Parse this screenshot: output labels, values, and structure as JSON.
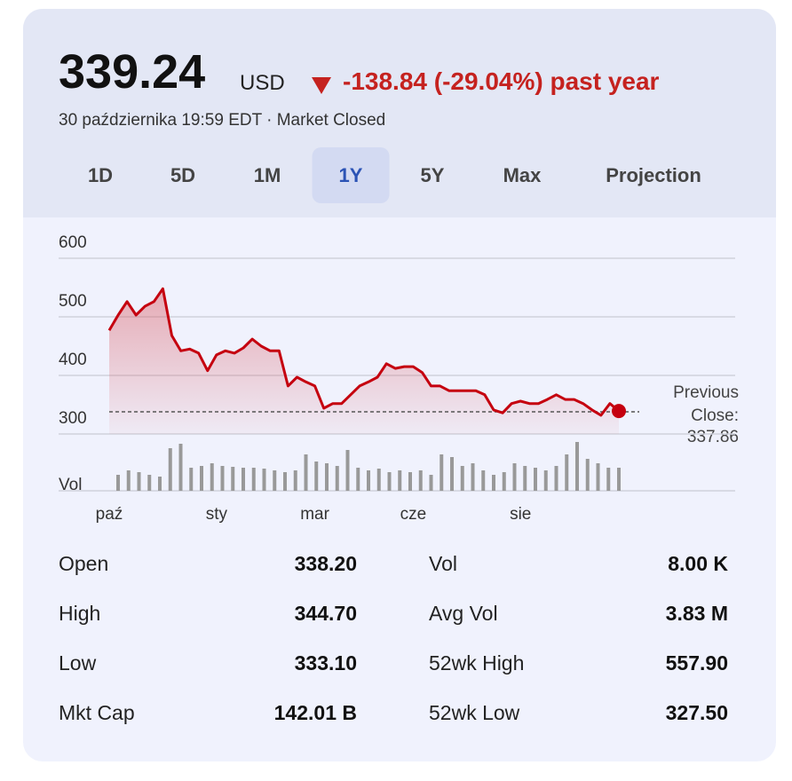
{
  "header": {
    "price": "339.24",
    "currency": "USD",
    "change": "-138.84 (-29.04%) past year",
    "timestamp": "30 października 19:59 EDT · Market Closed"
  },
  "tabs": {
    "items": [
      "1D",
      "5D",
      "1M",
      "1Y",
      "5Y",
      "Max",
      "Projection"
    ],
    "selected": 3
  },
  "chart_data": {
    "type": "line",
    "categories": [
      "paź",
      null,
      null,
      null,
      null,
      null,
      null,
      null,
      null,
      null,
      null,
      null,
      "sty",
      null,
      null,
      null,
      null,
      null,
      null,
      null,
      null,
      null,
      null,
      "mar",
      null,
      null,
      null,
      null,
      null,
      null,
      null,
      null,
      null,
      null,
      "cze",
      null,
      null,
      null,
      null,
      null,
      null,
      null,
      null,
      null,
      null,
      null,
      "sie",
      null,
      null,
      null,
      null,
      null,
      null,
      null,
      null,
      null,
      null,
      null
    ],
    "series": [
      {
        "name": null,
        "color": "#c5000f",
        "values": [
          477,
          503,
          526,
          503,
          518,
          526,
          548,
          468,
          442,
          445,
          438,
          408,
          435,
          442,
          438,
          447,
          462,
          450,
          442,
          442,
          382,
          397,
          389,
          382,
          344,
          352,
          352,
          367,
          382,
          389,
          397,
          420,
          412,
          415,
          415,
          405,
          382,
          382,
          374,
          374,
          374,
          374,
          367,
          341,
          336,
          352,
          356,
          352,
          352,
          359,
          367,
          359,
          359,
          352,
          341,
          332,
          352,
          339.24
        ]
      }
    ],
    "ylim": [
      300,
      600
    ],
    "yticks": [
      300,
      400,
      500,
      600
    ],
    "grid": true,
    "previous_close": {
      "label": "Previous Close:",
      "value": 337.86
    },
    "volume": {
      "label": "Vol",
      "color": "#999999",
      "ylim": [
        0,
        60
      ],
      "values": [
        18,
        23,
        21,
        18,
        16,
        48,
        53,
        26,
        28,
        31,
        28,
        27,
        26,
        26,
        25,
        23,
        21,
        23,
        41,
        33,
        31,
        28,
        46,
        26,
        23,
        25,
        21,
        23,
        21,
        23,
        18,
        41,
        38,
        28,
        31,
        23,
        18,
        21,
        31,
        28,
        26,
        23,
        28,
        41,
        55,
        36,
        31,
        26,
        26
      ]
    }
  },
  "stats": {
    "rows": [
      [
        "Open",
        "338.20",
        "Vol",
        "8.00 K"
      ],
      [
        "High",
        "344.70",
        "Avg Vol",
        "3.83 M"
      ],
      [
        "Low",
        "333.10",
        "52wk High",
        "557.90"
      ],
      [
        "Mkt Cap",
        "142.01 B",
        "52wk Low",
        "327.50"
      ]
    ]
  }
}
